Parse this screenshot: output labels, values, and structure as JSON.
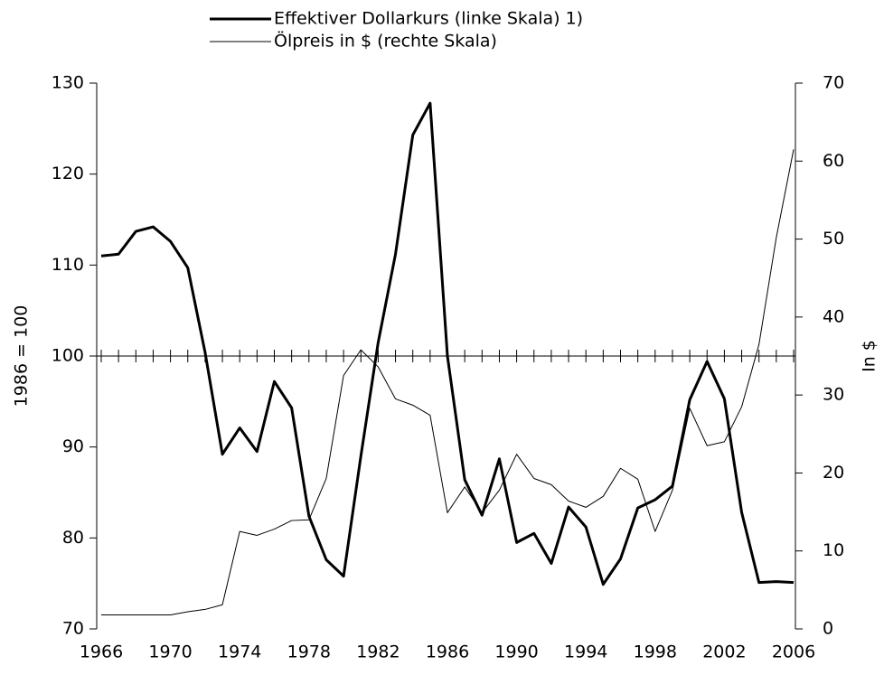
{
  "chart_data": {
    "type": "line",
    "x_label": null,
    "y_label": "1986 = 100",
    "y2_label": "In $",
    "x": [
      1966,
      1967,
      1968,
      1969,
      1970,
      1971,
      1972,
      1973,
      1974,
      1975,
      1976,
      1977,
      1978,
      1979,
      1980,
      1981,
      1982,
      1983,
      1984,
      1985,
      1986,
      1987,
      1988,
      1989,
      1990,
      1991,
      1992,
      1993,
      1994,
      1995,
      1996,
      1997,
      1998,
      1999,
      2000,
      2001,
      2002,
      2003,
      2004,
      2005,
      2006
    ],
    "xlim": [
      1966,
      2006
    ],
    "xticks": [
      1966,
      1970,
      1974,
      1978,
      1982,
      1986,
      1990,
      1994,
      1998,
      2002,
      2006
    ],
    "ylim": [
      70,
      130
    ],
    "yticks": [
      70,
      80,
      90,
      100,
      110,
      120,
      130
    ],
    "y2lim": [
      0,
      70
    ],
    "y2ticks": [
      0,
      10,
      20,
      30,
      40,
      50,
      60,
      70
    ],
    "axis_cross": 100,
    "series": [
      {
        "name": "Effektiver Dollarkurs (linke Skala) 1)",
        "color": "#000000",
        "width": 3,
        "axis": "y",
        "values": [
          111.0,
          111.2,
          113.7,
          114.2,
          112.6,
          109.7,
          100.4,
          89.2,
          92.1,
          89.5,
          97.2,
          94.3,
          82.4,
          77.6,
          75.8,
          89.0,
          101.5,
          111.2,
          124.3,
          127.8,
          100.0,
          86.4,
          82.5,
          88.7,
          79.5,
          80.5,
          77.2,
          83.4,
          81.2,
          74.9,
          77.7,
          83.3,
          84.2,
          85.7,
          95.2,
          99.4,
          95.3,
          82.8,
          75.1,
          75.2,
          75.1
        ]
      },
      {
        "name": "Ölpreis in $ (rechte Skala)",
        "color": "#000000",
        "width": 1,
        "axis": "y2",
        "values": [
          1.8,
          1.8,
          1.8,
          1.8,
          1.8,
          2.2,
          2.5,
          3.1,
          12.5,
          12.0,
          12.8,
          13.9,
          14.0,
          19.3,
          32.5,
          35.8,
          33.6,
          29.5,
          28.7,
          27.4,
          14.9,
          18.2,
          14.9,
          17.8,
          22.4,
          19.3,
          18.5,
          16.4,
          15.6,
          17.0,
          20.6,
          19.2,
          12.5,
          17.8,
          28.3,
          23.5,
          24.0,
          28.5,
          36.5,
          50.2,
          61.5
        ]
      }
    ]
  }
}
